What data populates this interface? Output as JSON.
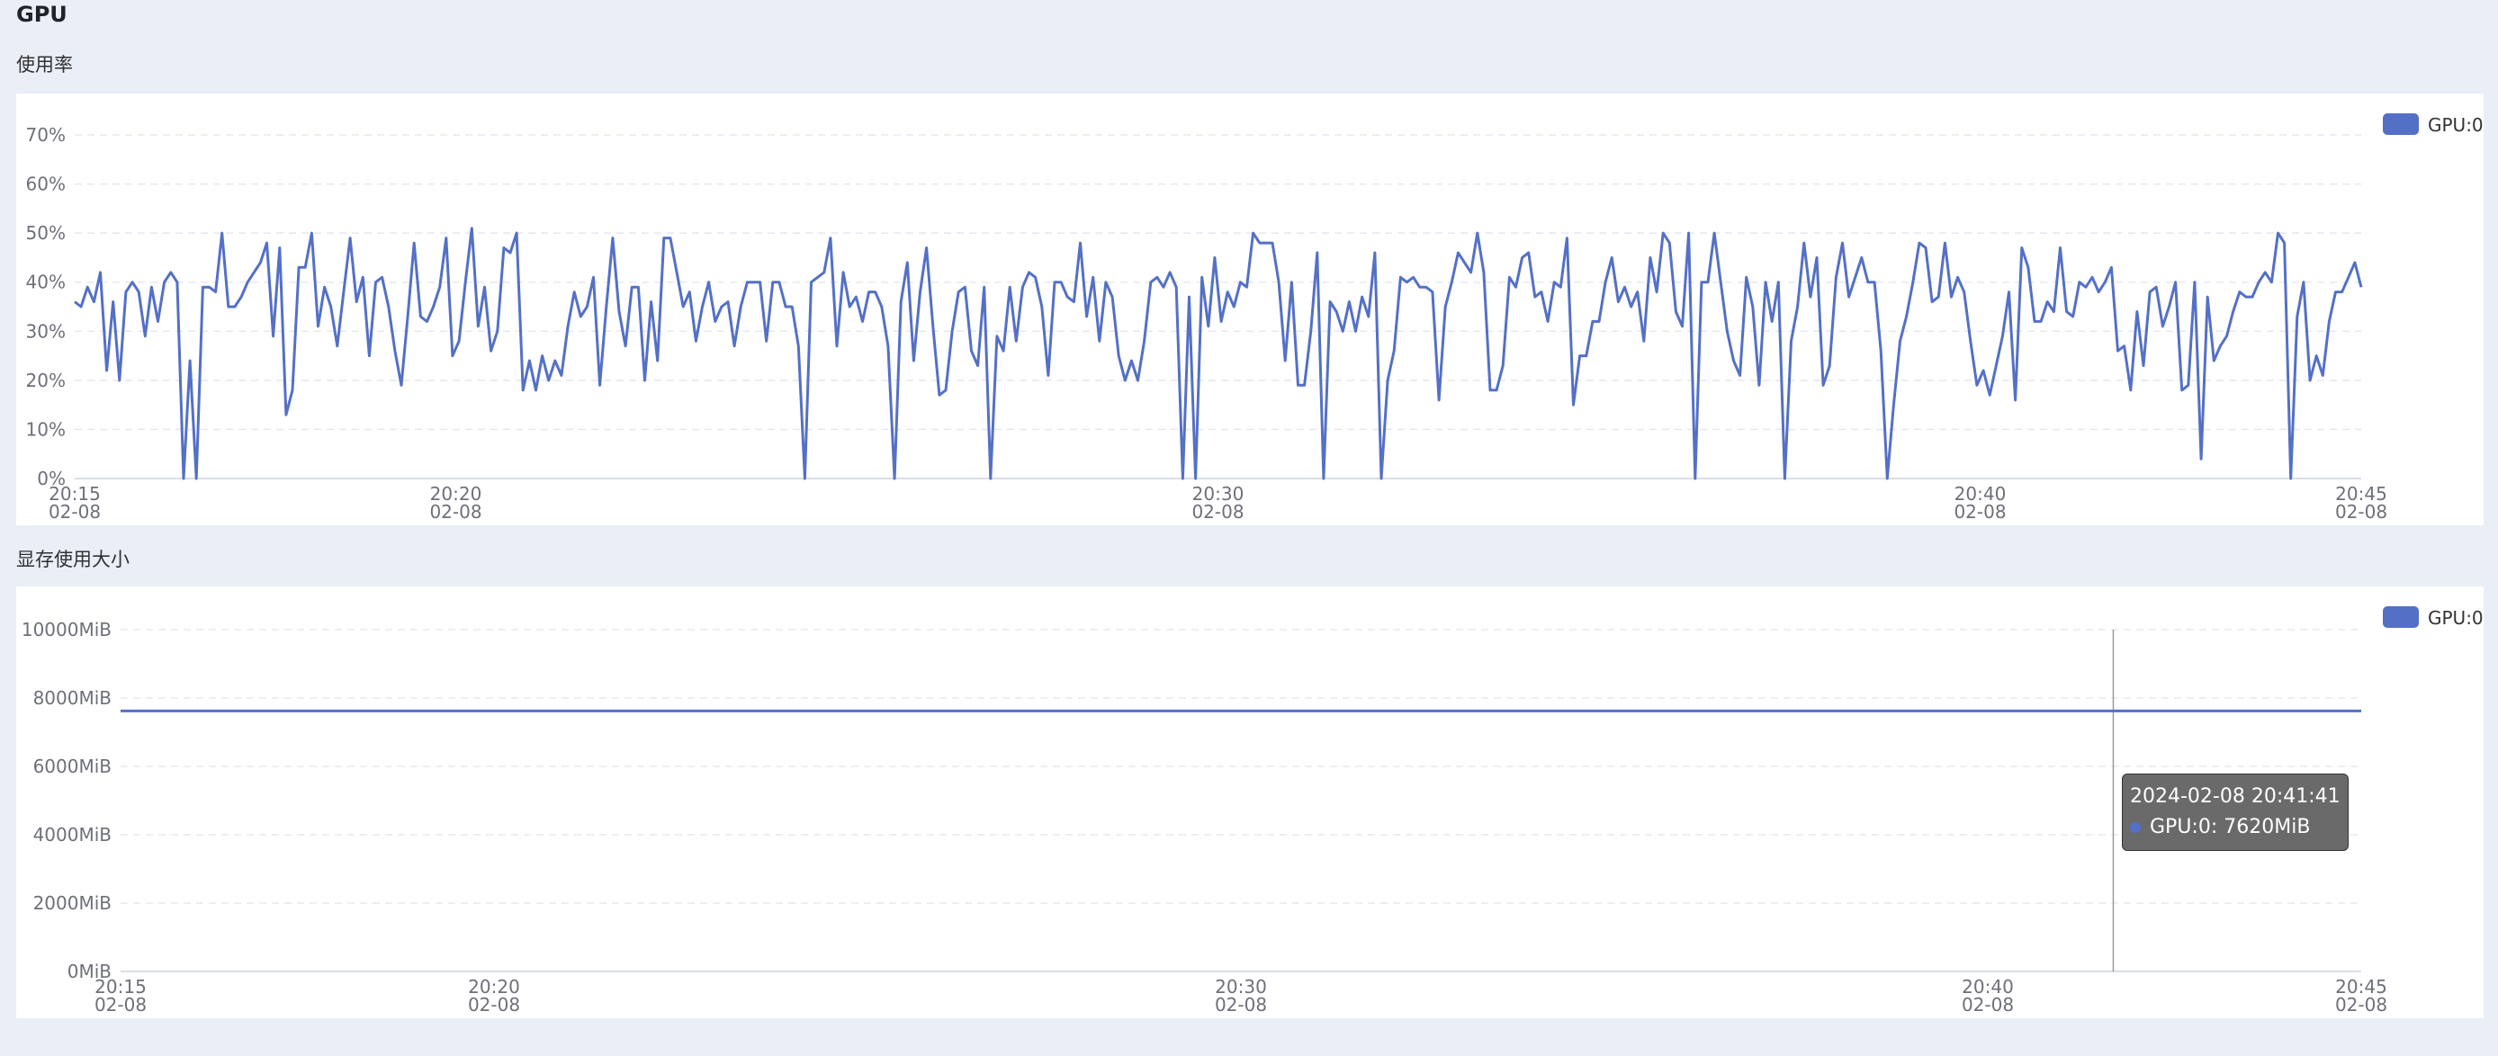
{
  "page": {
    "title": "GPU",
    "charts_labels": [
      "使用率",
      "显存使用大小"
    ]
  },
  "colors": {
    "series": "#5470c6",
    "grid": "#e5e8ef",
    "axis": "#d9dde6",
    "label": "#6e7079"
  },
  "chart_data": [
    {
      "type": "line",
      "title": "使用率",
      "legend": [
        "GPU:0"
      ],
      "legend_position": "top-right",
      "x_ticks": [
        {
          "time": "20:15",
          "date": "02-08"
        },
        {
          "time": "20:20",
          "date": "02-08"
        },
        {
          "time": "20:30",
          "date": "02-08"
        },
        {
          "time": "20:40",
          "date": "02-08"
        },
        {
          "time": "20:45",
          "date": "02-08"
        }
      ],
      "x_range": [
        "2024-02-08 20:15",
        "2024-02-08 20:45"
      ],
      "y_ticks": [
        "0%",
        "10%",
        "20%",
        "30%",
        "40%",
        "50%",
        "60%",
        "70%"
      ],
      "ylim": [
        0,
        70
      ],
      "y_unit": "%",
      "grid": true,
      "series": [
        {
          "name": "GPU:0",
          "values": [
            36,
            35,
            39,
            36,
            42,
            22,
            36,
            20,
            38,
            40,
            38,
            29,
            39,
            32,
            40,
            42,
            40,
            0,
            24,
            0,
            39,
            39,
            38,
            50,
            35,
            35,
            37,
            40,
            42,
            44,
            48,
            29,
            47,
            13,
            18,
            43,
            43,
            50,
            31,
            39,
            35,
            27,
            38,
            49,
            36,
            41,
            25,
            40,
            41,
            35,
            26,
            19,
            33,
            48,
            33,
            32,
            35,
            39,
            49,
            25,
            28,
            40,
            51,
            31,
            39,
            26,
            30,
            47,
            46,
            50,
            18,
            24,
            18,
            25,
            20,
            24,
            21,
            31,
            38,
            33,
            35,
            41,
            19,
            35,
            49,
            34,
            27,
            39,
            39,
            20,
            36,
            24,
            49,
            49,
            42,
            35,
            38,
            28,
            35,
            40,
            32,
            35,
            36,
            27,
            35,
            40,
            40,
            40,
            28,
            40,
            40,
            35,
            35,
            27,
            0,
            40,
            41,
            42,
            49,
            27,
            42,
            35,
            37,
            32,
            38,
            38,
            35,
            27,
            0,
            36,
            44,
            24,
            38,
            47,
            31,
            17,
            18,
            30,
            38,
            39,
            26,
            23,
            39,
            0,
            29,
            26,
            39,
            28,
            39,
            42,
            41,
            35,
            21,
            40,
            40,
            37,
            36,
            48,
            33,
            41,
            28,
            40,
            37,
            25,
            20,
            24,
            20,
            28,
            40,
            41,
            39,
            42,
            39,
            0,
            37,
            0,
            41,
            31,
            45,
            32,
            38,
            35,
            40,
            39,
            50,
            48,
            48,
            48,
            40,
            24,
            40,
            19,
            19,
            30,
            46,
            0,
            36,
            34,
            30,
            36,
            30,
            37,
            33,
            46,
            0,
            20,
            26,
            41,
            40,
            41,
            39,
            39,
            38,
            16,
            35,
            40,
            46,
            44,
            42,
            50,
            42,
            18,
            18,
            23,
            41,
            39,
            45,
            46,
            37,
            38,
            32,
            40,
            39,
            49,
            15,
            25,
            25,
            32,
            32,
            40,
            45,
            36,
            39,
            35,
            38,
            28,
            45,
            38,
            50,
            48,
            34,
            31,
            50,
            0,
            40,
            40,
            50,
            40,
            30,
            24,
            21,
            41,
            35,
            19,
            40,
            32,
            40,
            0,
            28,
            35,
            48,
            37,
            45,
            19,
            23,
            41,
            48,
            37,
            41,
            45,
            40,
            40,
            26,
            0,
            15,
            28,
            33,
            40,
            48,
            47,
            36,
            37,
            48,
            37,
            41,
            38,
            28,
            19,
            22,
            17,
            23,
            29,
            38,
            16,
            47,
            43,
            32,
            32,
            36,
            34,
            47,
            34,
            33,
            40,
            39,
            41,
            38,
            40,
            43,
            26,
            27,
            18,
            34,
            23,
            38,
            39,
            31,
            35,
            40,
            18,
            19,
            40,
            4,
            37,
            24,
            27,
            29,
            34,
            38,
            37,
            37,
            40,
            42,
            40,
            50,
            48,
            0,
            33,
            40,
            20,
            25,
            21,
            32,
            38,
            38,
            41,
            44,
            39
          ]
        }
      ]
    },
    {
      "type": "line",
      "title": "显存使用大小",
      "legend": [
        "GPU:0"
      ],
      "legend_position": "top-right",
      "x_ticks": [
        {
          "time": "20:15",
          "date": "02-08"
        },
        {
          "time": "20:20",
          "date": "02-08"
        },
        {
          "time": "20:30",
          "date": "02-08"
        },
        {
          "time": "20:40",
          "date": "02-08"
        },
        {
          "time": "20:45",
          "date": "02-08"
        }
      ],
      "x_range": [
        "2024-02-08 20:15",
        "2024-02-08 20:45"
      ],
      "y_ticks": [
        "0MiB",
        "2000MiB",
        "4000MiB",
        "6000MiB",
        "8000MiB",
        "10000MiB"
      ],
      "ylim": [
        0,
        10000
      ],
      "y_unit": "MiB",
      "grid": true,
      "series": [
        {
          "name": "GPU:0",
          "values": [
            7620,
            7620
          ]
        }
      ],
      "tooltip": {
        "time_label": "2024-02-08 20:41:41",
        "series_label": "GPU:0: 7620MiB",
        "cursor_minute": 26.68
      }
    }
  ]
}
